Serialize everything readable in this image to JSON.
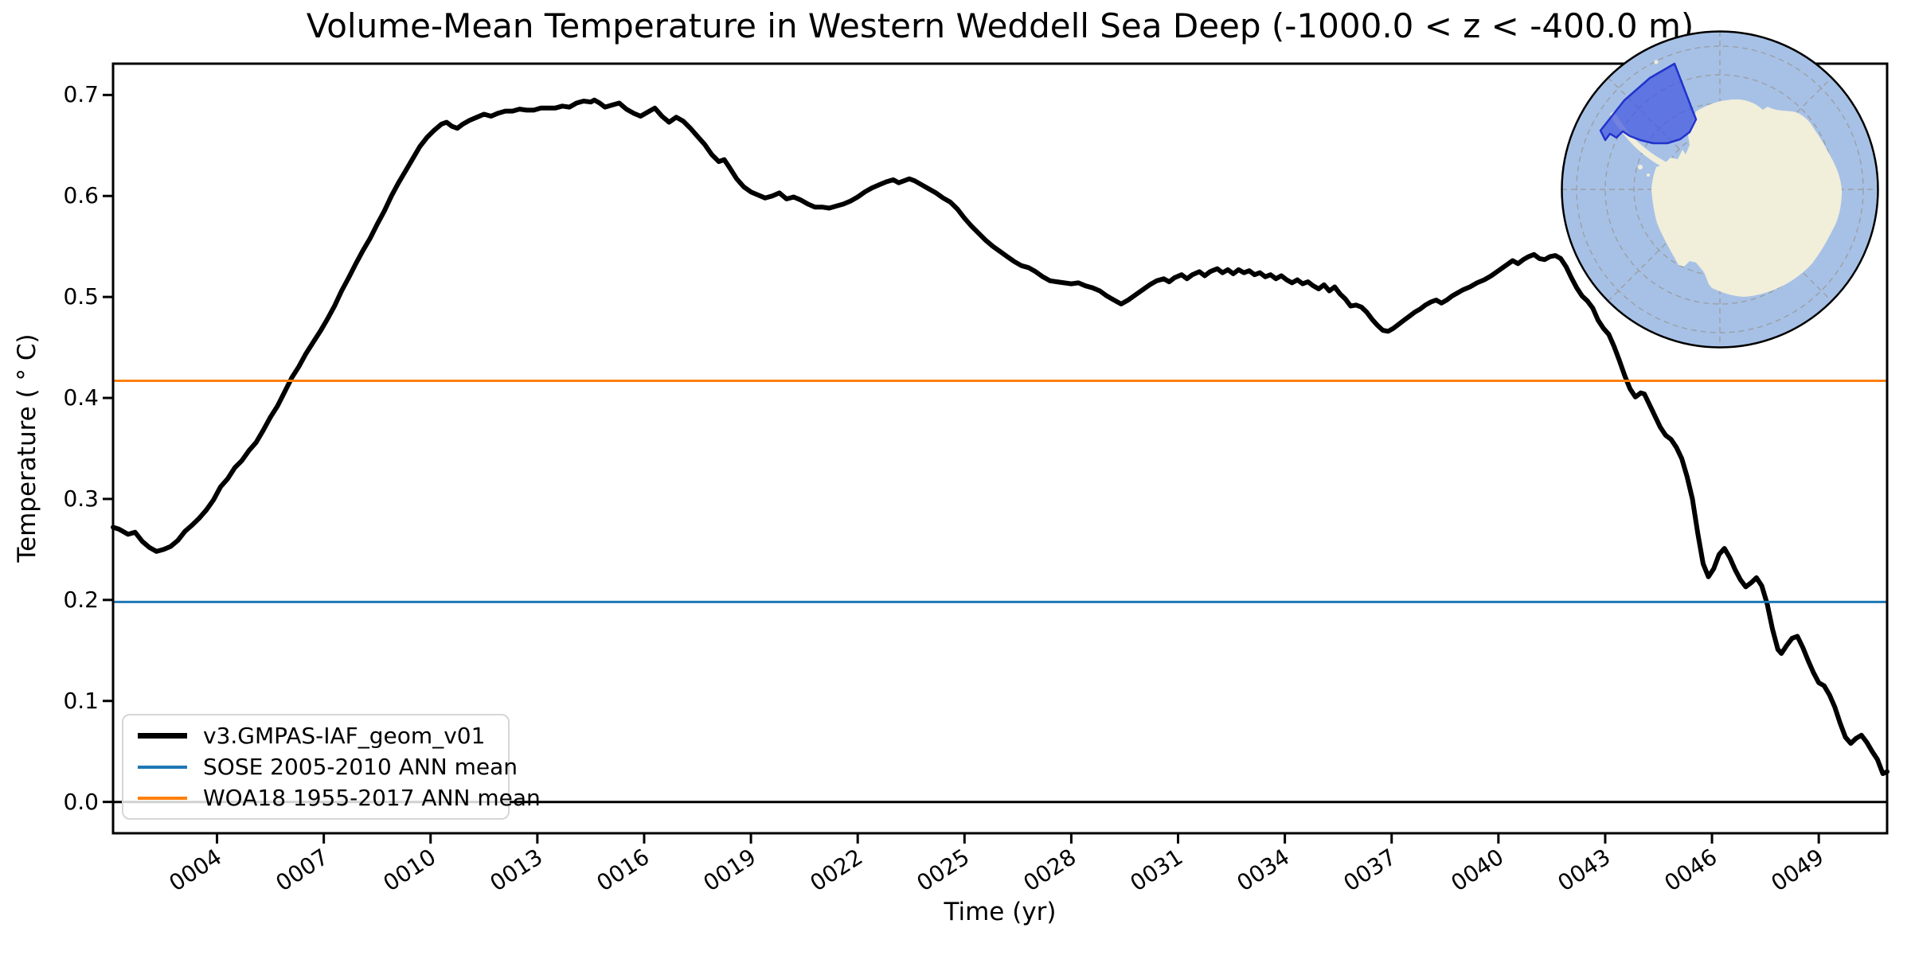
{
  "figure": {
    "background": "#ffffff"
  },
  "chart_data": {
    "type": "line",
    "title": "Volume-Mean Temperature in Western Weddell Sea Deep (-1000.0 < z < -400.0 m)",
    "xlabel": "Time (yr)",
    "ylabel": "Temperature ( ° C)",
    "xlim": [
      1.08,
      50.92
    ],
    "ylim": [
      -0.031,
      0.731
    ],
    "grid": false,
    "xticks": {
      "values": [
        4,
        7,
        10,
        13,
        16,
        19,
        22,
        25,
        28,
        31,
        34,
        37,
        40,
        43,
        46,
        49
      ],
      "labels": [
        "0004",
        "0007",
        "0010",
        "0013",
        "0016",
        "0019",
        "0022",
        "0025",
        "0028",
        "0031",
        "0034",
        "0037",
        "0040",
        "0043",
        "0046",
        "0049"
      ],
      "rotation_deg": 33
    },
    "yticks": {
      "values": [
        0.0,
        0.1,
        0.2,
        0.3,
        0.4,
        0.5,
        0.6,
        0.7
      ],
      "labels": [
        "0.0",
        "0.1",
        "0.2",
        "0.3",
        "0.4",
        "0.5",
        "0.6",
        "0.7"
      ]
    },
    "legend": {
      "position": "lower left",
      "entries": [
        {
          "label": "v3.GMPAS-IAF_geom_v01",
          "color": "#000000",
          "linewidth": 7
        },
        {
          "label": "SOSE 2005-2010 ANN mean",
          "color": "#1f77b4",
          "linewidth": 3.5
        },
        {
          "label": "WOA18 1955-2017 ANN mean",
          "color": "#ff7f0e",
          "linewidth": 3.5
        }
      ]
    },
    "series": [
      {
        "name": "v3.GMPAS-IAF_geom_v01",
        "type": "line",
        "color": "#000000",
        "linewidth": 6,
        "points": [
          [
            1.08,
            0.272
          ],
          [
            1.25,
            0.27
          ],
          [
            1.5,
            0.265
          ],
          [
            1.7,
            0.267
          ],
          [
            1.9,
            0.258
          ],
          [
            2.1,
            0.252
          ],
          [
            2.3,
            0.248
          ],
          [
            2.5,
            0.25
          ],
          [
            2.7,
            0.253
          ],
          [
            2.9,
            0.259
          ],
          [
            3.1,
            0.268
          ],
          [
            3.3,
            0.274
          ],
          [
            3.5,
            0.281
          ],
          [
            3.7,
            0.289
          ],
          [
            3.9,
            0.299
          ],
          [
            4.1,
            0.312
          ],
          [
            4.3,
            0.32
          ],
          [
            4.5,
            0.331
          ],
          [
            4.7,
            0.338
          ],
          [
            4.9,
            0.348
          ],
          [
            5.1,
            0.356
          ],
          [
            5.3,
            0.368
          ],
          [
            5.5,
            0.381
          ],
          [
            5.7,
            0.392
          ],
          [
            5.9,
            0.406
          ],
          [
            6.1,
            0.42
          ],
          [
            6.3,
            0.431
          ],
          [
            6.5,
            0.444
          ],
          [
            6.7,
            0.455
          ],
          [
            6.9,
            0.466
          ],
          [
            7.1,
            0.478
          ],
          [
            7.3,
            0.491
          ],
          [
            7.5,
            0.506
          ],
          [
            7.7,
            0.519
          ],
          [
            7.9,
            0.533
          ],
          [
            8.1,
            0.546
          ],
          [
            8.3,
            0.558
          ],
          [
            8.5,
            0.572
          ],
          [
            8.7,
            0.585
          ],
          [
            8.9,
            0.6
          ],
          [
            9.1,
            0.613
          ],
          [
            9.3,
            0.625
          ],
          [
            9.5,
            0.637
          ],
          [
            9.7,
            0.649
          ],
          [
            9.9,
            0.658
          ],
          [
            10.1,
            0.665
          ],
          [
            10.3,
            0.671
          ],
          [
            10.45,
            0.673
          ],
          [
            10.6,
            0.669
          ],
          [
            10.75,
            0.667
          ],
          [
            10.9,
            0.671
          ],
          [
            11.1,
            0.675
          ],
          [
            11.3,
            0.678
          ],
          [
            11.5,
            0.681
          ],
          [
            11.7,
            0.679
          ],
          [
            11.9,
            0.682
          ],
          [
            12.1,
            0.684
          ],
          [
            12.3,
            0.684
          ],
          [
            12.5,
            0.686
          ],
          [
            12.7,
            0.685
          ],
          [
            12.9,
            0.685
          ],
          [
            13.1,
            0.687
          ],
          [
            13.3,
            0.687
          ],
          [
            13.5,
            0.687
          ],
          [
            13.7,
            0.689
          ],
          [
            13.9,
            0.688
          ],
          [
            14.1,
            0.692
          ],
          [
            14.3,
            0.694
          ],
          [
            14.5,
            0.693
          ],
          [
            14.6,
            0.695
          ],
          [
            14.75,
            0.692
          ],
          [
            14.9,
            0.688
          ],
          [
            15.1,
            0.69
          ],
          [
            15.3,
            0.692
          ],
          [
            15.5,
            0.686
          ],
          [
            15.7,
            0.682
          ],
          [
            15.9,
            0.679
          ],
          [
            16.1,
            0.683
          ],
          [
            16.3,
            0.687
          ],
          [
            16.5,
            0.679
          ],
          [
            16.7,
            0.673
          ],
          [
            16.9,
            0.678
          ],
          [
            17.1,
            0.674
          ],
          [
            17.3,
            0.667
          ],
          [
            17.5,
            0.659
          ],
          [
            17.7,
            0.651
          ],
          [
            17.9,
            0.641
          ],
          [
            18.1,
            0.634
          ],
          [
            18.25,
            0.636
          ],
          [
            18.4,
            0.628
          ],
          [
            18.6,
            0.617
          ],
          [
            18.8,
            0.609
          ],
          [
            19.0,
            0.604
          ],
          [
            19.2,
            0.601
          ],
          [
            19.4,
            0.598
          ],
          [
            19.6,
            0.6
          ],
          [
            19.8,
            0.603
          ],
          [
            20.0,
            0.597
          ],
          [
            20.2,
            0.599
          ],
          [
            20.4,
            0.596
          ],
          [
            20.6,
            0.592
          ],
          [
            20.8,
            0.589
          ],
          [
            21.0,
            0.589
          ],
          [
            21.2,
            0.588
          ],
          [
            21.4,
            0.59
          ],
          [
            21.6,
            0.592
          ],
          [
            21.8,
            0.595
          ],
          [
            22.0,
            0.599
          ],
          [
            22.2,
            0.604
          ],
          [
            22.4,
            0.608
          ],
          [
            22.6,
            0.611
          ],
          [
            22.8,
            0.614
          ],
          [
            23.0,
            0.616
          ],
          [
            23.15,
            0.613
          ],
          [
            23.3,
            0.615
          ],
          [
            23.45,
            0.617
          ],
          [
            23.6,
            0.615
          ],
          [
            23.8,
            0.611
          ],
          [
            24.0,
            0.607
          ],
          [
            24.2,
            0.603
          ],
          [
            24.4,
            0.598
          ],
          [
            24.6,
            0.594
          ],
          [
            24.8,
            0.587
          ],
          [
            25.0,
            0.578
          ],
          [
            25.2,
            0.57
          ],
          [
            25.4,
            0.563
          ],
          [
            25.6,
            0.556
          ],
          [
            25.8,
            0.55
          ],
          [
            26.0,
            0.545
          ],
          [
            26.2,
            0.54
          ],
          [
            26.4,
            0.535
          ],
          [
            26.6,
            0.531
          ],
          [
            26.8,
            0.529
          ],
          [
            27.0,
            0.525
          ],
          [
            27.2,
            0.52
          ],
          [
            27.4,
            0.516
          ],
          [
            27.6,
            0.515
          ],
          [
            27.8,
            0.514
          ],
          [
            28.0,
            0.513
          ],
          [
            28.2,
            0.514
          ],
          [
            28.4,
            0.511
          ],
          [
            28.6,
            0.509
          ],
          [
            28.8,
            0.506
          ],
          [
            29.0,
            0.501
          ],
          [
            29.2,
            0.497
          ],
          [
            29.4,
            0.493
          ],
          [
            29.6,
            0.497
          ],
          [
            29.8,
            0.502
          ],
          [
            30.0,
            0.507
          ],
          [
            30.2,
            0.512
          ],
          [
            30.4,
            0.516
          ],
          [
            30.6,
            0.518
          ],
          [
            30.75,
            0.515
          ],
          [
            30.9,
            0.519
          ],
          [
            31.1,
            0.522
          ],
          [
            31.25,
            0.518
          ],
          [
            31.4,
            0.522
          ],
          [
            31.6,
            0.525
          ],
          [
            31.75,
            0.521
          ],
          [
            31.9,
            0.525
          ],
          [
            32.1,
            0.528
          ],
          [
            32.25,
            0.524
          ],
          [
            32.4,
            0.527
          ],
          [
            32.55,
            0.523
          ],
          [
            32.7,
            0.527
          ],
          [
            32.85,
            0.524
          ],
          [
            33.0,
            0.526
          ],
          [
            33.15,
            0.522
          ],
          [
            33.3,
            0.524
          ],
          [
            33.45,
            0.52
          ],
          [
            33.6,
            0.522
          ],
          [
            33.75,
            0.518
          ],
          [
            33.9,
            0.521
          ],
          [
            34.05,
            0.517
          ],
          [
            34.2,
            0.514
          ],
          [
            34.35,
            0.517
          ],
          [
            34.5,
            0.513
          ],
          [
            34.65,
            0.515
          ],
          [
            34.8,
            0.511
          ],
          [
            34.95,
            0.508
          ],
          [
            35.1,
            0.512
          ],
          [
            35.25,
            0.506
          ],
          [
            35.4,
            0.51
          ],
          [
            35.55,
            0.503
          ],
          [
            35.7,
            0.498
          ],
          [
            35.85,
            0.491
          ],
          [
            36.0,
            0.492
          ],
          [
            36.15,
            0.49
          ],
          [
            36.3,
            0.485
          ],
          [
            36.45,
            0.478
          ],
          [
            36.6,
            0.472
          ],
          [
            36.75,
            0.467
          ],
          [
            36.9,
            0.466
          ],
          [
            37.05,
            0.469
          ],
          [
            37.2,
            0.473
          ],
          [
            37.35,
            0.477
          ],
          [
            37.5,
            0.481
          ],
          [
            37.65,
            0.485
          ],
          [
            37.8,
            0.488
          ],
          [
            37.95,
            0.492
          ],
          [
            38.1,
            0.495
          ],
          [
            38.25,
            0.497
          ],
          [
            38.4,
            0.494
          ],
          [
            38.55,
            0.497
          ],
          [
            38.7,
            0.501
          ],
          [
            38.85,
            0.504
          ],
          [
            39.0,
            0.507
          ],
          [
            39.2,
            0.51
          ],
          [
            39.4,
            0.514
          ],
          [
            39.6,
            0.517
          ],
          [
            39.8,
            0.521
          ],
          [
            40.0,
            0.526
          ],
          [
            40.2,
            0.531
          ],
          [
            40.4,
            0.536
          ],
          [
            40.55,
            0.533
          ],
          [
            40.7,
            0.537
          ],
          [
            40.85,
            0.54
          ],
          [
            41.0,
            0.542
          ],
          [
            41.15,
            0.538
          ],
          [
            41.3,
            0.537
          ],
          [
            41.45,
            0.54
          ],
          [
            41.6,
            0.541
          ],
          [
            41.75,
            0.538
          ],
          [
            41.9,
            0.53
          ],
          [
            42.05,
            0.519
          ],
          [
            42.2,
            0.509
          ],
          [
            42.35,
            0.501
          ],
          [
            42.5,
            0.496
          ],
          [
            42.65,
            0.489
          ],
          [
            42.8,
            0.477
          ],
          [
            42.95,
            0.469
          ],
          [
            43.1,
            0.463
          ],
          [
            43.25,
            0.451
          ],
          [
            43.4,
            0.437
          ],
          [
            43.55,
            0.422
          ],
          [
            43.7,
            0.409
          ],
          [
            43.85,
            0.401
          ],
          [
            44.0,
            0.405
          ],
          [
            44.1,
            0.404
          ],
          [
            44.25,
            0.393
          ],
          [
            44.4,
            0.382
          ],
          [
            44.55,
            0.371
          ],
          [
            44.7,
            0.363
          ],
          [
            44.85,
            0.359
          ],
          [
            45.0,
            0.351
          ],
          [
            45.15,
            0.34
          ],
          [
            45.3,
            0.322
          ],
          [
            45.45,
            0.3
          ],
          [
            45.6,
            0.266
          ],
          [
            45.75,
            0.236
          ],
          [
            45.9,
            0.223
          ],
          [
            46.05,
            0.231
          ],
          [
            46.2,
            0.245
          ],
          [
            46.35,
            0.251
          ],
          [
            46.5,
            0.242
          ],
          [
            46.65,
            0.23
          ],
          [
            46.8,
            0.22
          ],
          [
            46.95,
            0.213
          ],
          [
            47.1,
            0.217
          ],
          [
            47.25,
            0.222
          ],
          [
            47.4,
            0.214
          ],
          [
            47.55,
            0.196
          ],
          [
            47.7,
            0.171
          ],
          [
            47.85,
            0.151
          ],
          [
            47.95,
            0.147
          ],
          [
            48.1,
            0.155
          ],
          [
            48.25,
            0.162
          ],
          [
            48.4,
            0.164
          ],
          [
            48.55,
            0.153
          ],
          [
            48.7,
            0.14
          ],
          [
            48.85,
            0.128
          ],
          [
            49.0,
            0.118
          ],
          [
            49.15,
            0.115
          ],
          [
            49.3,
            0.106
          ],
          [
            49.45,
            0.094
          ],
          [
            49.6,
            0.078
          ],
          [
            49.75,
            0.064
          ],
          [
            49.9,
            0.058
          ],
          [
            50.05,
            0.063
          ],
          [
            50.2,
            0.066
          ],
          [
            50.35,
            0.059
          ],
          [
            50.5,
            0.05
          ],
          [
            50.65,
            0.042
          ],
          [
            50.8,
            0.028
          ],
          [
            50.92,
            0.03
          ]
        ]
      },
      {
        "name": "SOSE 2005-2010 ANN mean",
        "type": "hline",
        "value": 0.198,
        "color": "#1f77b4",
        "linewidth": 3
      },
      {
        "name": "WOA18 1955-2017 ANN mean",
        "type": "hline",
        "value": 0.417,
        "color": "#ff7f0e",
        "linewidth": 3
      },
      {
        "name": "zero-line",
        "type": "hline",
        "value": 0.0,
        "color": "#000000",
        "linewidth": 3
      }
    ],
    "inset_map": {
      "description": "South polar stereographic map of Antarctica",
      "highlight_region": "Western Weddell Sea",
      "ocean_color": "#a7c1e6",
      "land_color": "#f1eeda",
      "region_fill": "#4257e0",
      "region_edge": "#2133cc",
      "graticule_color": "#999999"
    }
  }
}
